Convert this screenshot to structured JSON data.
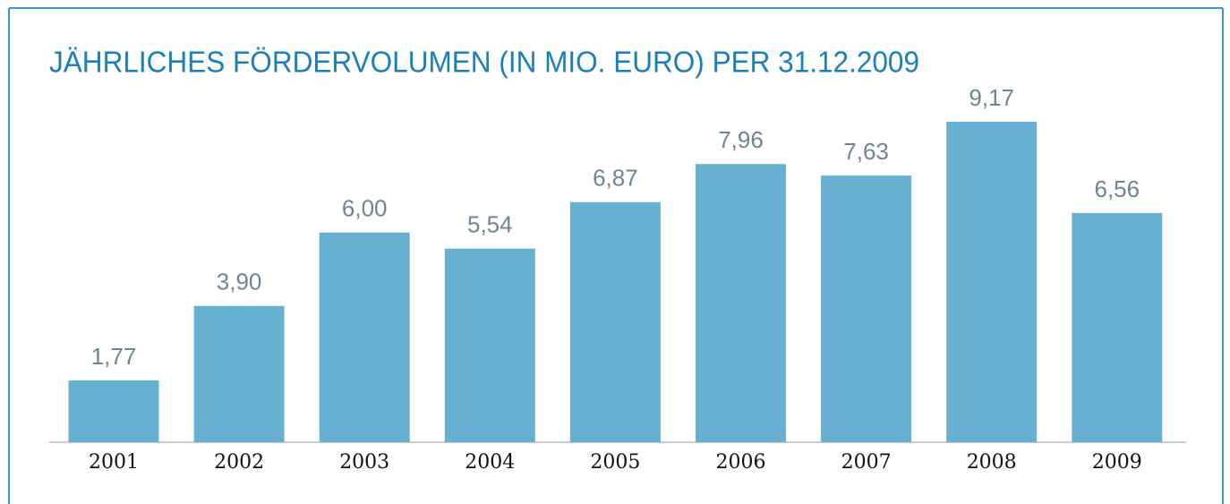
{
  "chart_data": {
    "type": "bar",
    "title": "JÄHRLICHES FÖRDERVOLUMEN (IN MIO. EURO) PER 31.12.2009",
    "categories": [
      "2001",
      "2002",
      "2003",
      "2004",
      "2005",
      "2006",
      "2007",
      "2008",
      "2009"
    ],
    "values": [
      1.77,
      3.9,
      6.0,
      5.54,
      6.87,
      7.96,
      7.63,
      9.17,
      6.56
    ],
    "value_labels": [
      "1,77",
      "3,90",
      "6,00",
      "5,54",
      "6,87",
      "7,96",
      "7,63",
      "9,17",
      "6,56"
    ],
    "color": "#67b0d1"
  }
}
